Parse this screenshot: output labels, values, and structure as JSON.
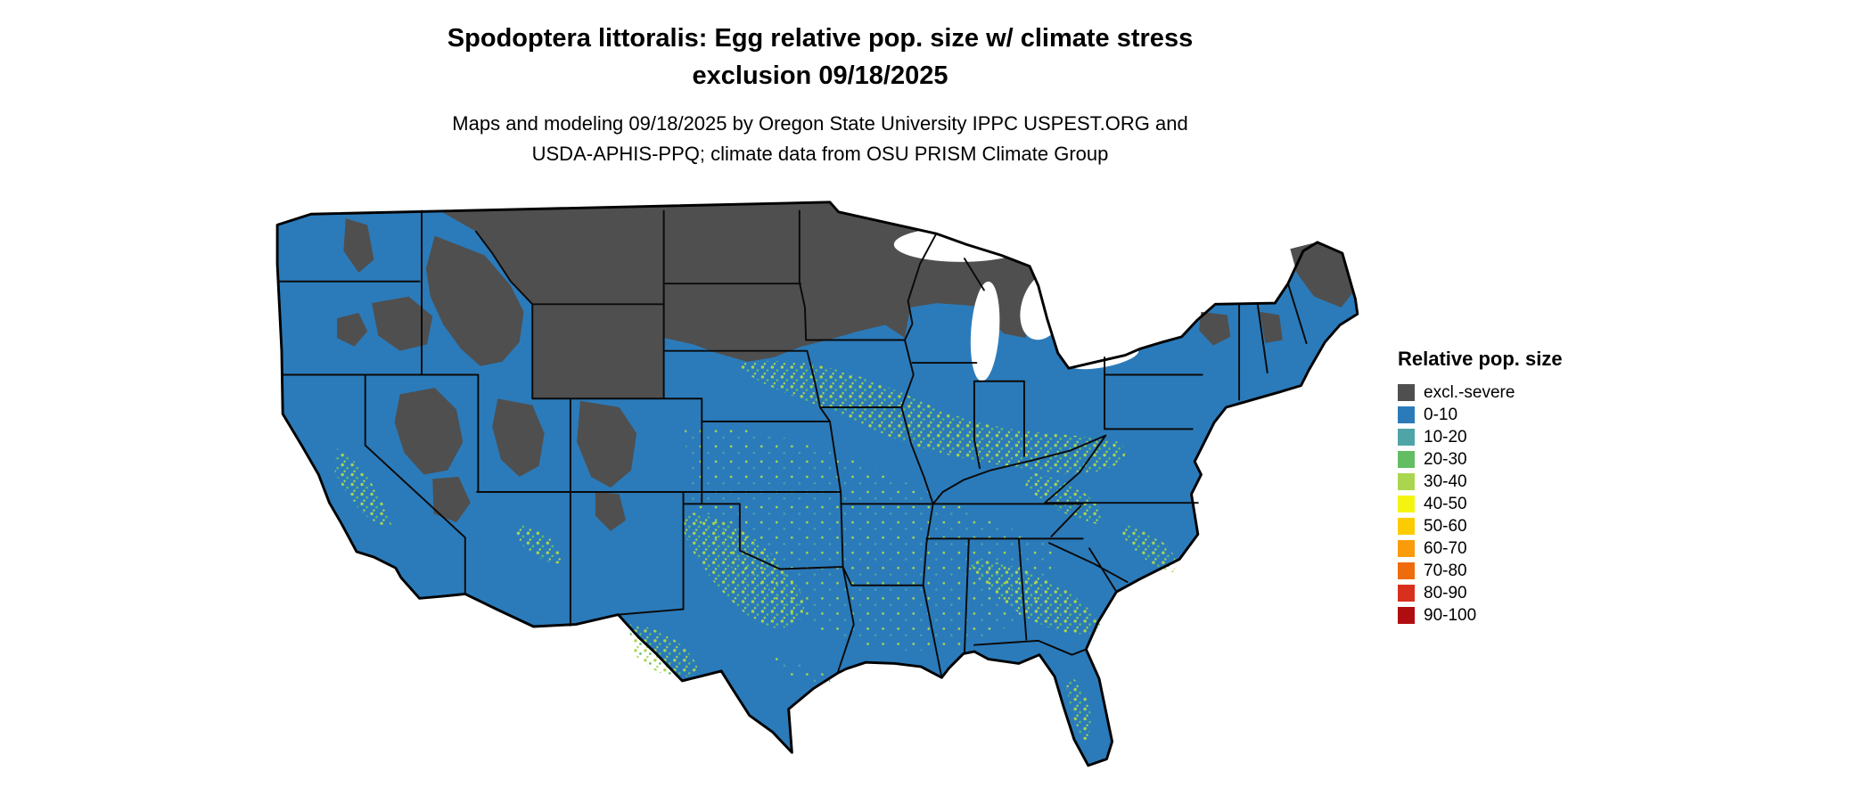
{
  "page": {
    "title_line1": "Spodoptera littoralis: Egg relative pop. size w/ climate stress",
    "title_line2": "exclusion 09/18/2025",
    "subtitle_line1": "Maps and modeling 09/18/2025 by Oregon State University IPPC USPEST.ORG and",
    "subtitle_line2": "USDA-APHIS-PPQ; climate data from OSU PRISM Climate Group"
  },
  "legend": {
    "title": "Relative pop. size",
    "items": [
      {
        "label": "excl.-severe",
        "color": "#4f4f4f"
      },
      {
        "label": "0-10",
        "color": "#2b7bba"
      },
      {
        "label": "10-20",
        "color": "#4fa4a8"
      },
      {
        "label": "20-30",
        "color": "#63bd62"
      },
      {
        "label": "30-40",
        "color": "#aad64f"
      },
      {
        "label": "40-50",
        "color": "#f4f411"
      },
      {
        "label": "50-60",
        "color": "#fdcb02"
      },
      {
        "label": "60-70",
        "color": "#fa9c0a"
      },
      {
        "label": "70-80",
        "color": "#ef6c0d"
      },
      {
        "label": "80-90",
        "color": "#d8301d"
      },
      {
        "label": "90-100",
        "color": "#b00d10"
      }
    ]
  }
}
